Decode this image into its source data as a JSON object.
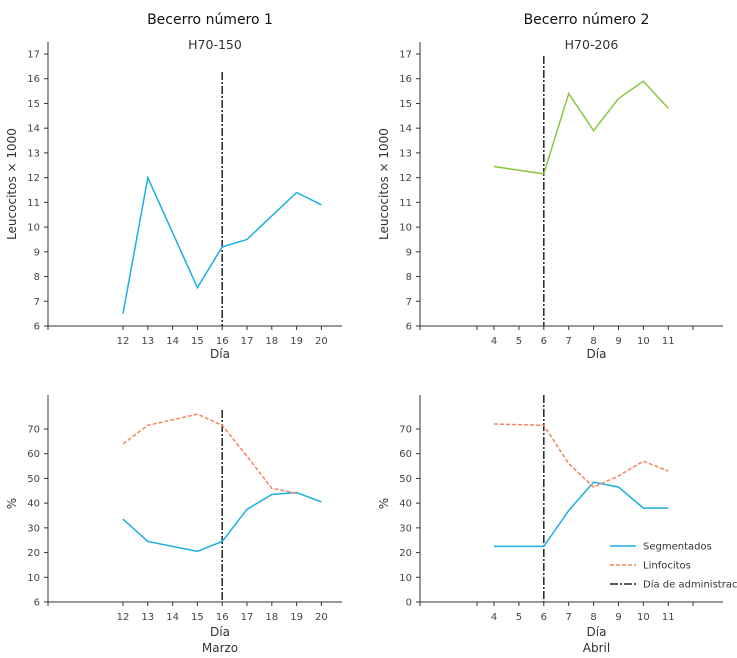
{
  "chart_data": [
    {
      "type": "line",
      "title": "Becerro número 1",
      "subtitle": "H70-150",
      "xlabel": "Día",
      "ylabel": "Leucocitos × 1000",
      "categories": [
        "12",
        "13",
        "14",
        "15",
        "16",
        "17",
        "18",
        "19",
        "20"
      ],
      "ylim": [
        6,
        17
      ],
      "yticks": [
        "6",
        "7",
        "8",
        "9",
        "10",
        "11",
        "12",
        "13",
        "14",
        "15",
        "16",
        "17"
      ],
      "administration_day": 16,
      "series": [
        {
          "color": "#1ab0e0",
          "style": "solid",
          "x": [
            12,
            13,
            15,
            16,
            17,
            18,
            19,
            20
          ],
          "values": [
            6.5,
            12.0,
            7.55,
            9.2,
            9.5,
            10.45,
            11.4,
            10.9
          ]
        }
      ]
    },
    {
      "type": "line",
      "title": "Becerro número 2",
      "subtitle": "H70-206",
      "xlabel": "Día",
      "ylabel": "Leucocitos × 1000",
      "categories": [
        "4",
        "5",
        "6",
        "7",
        "8",
        "9",
        "10",
        "11"
      ],
      "ylim": [
        6,
        17
      ],
      "yticks": [
        "6",
        "7",
        "8",
        "9",
        "10",
        "11",
        "12",
        "13",
        "14",
        "15",
        "16",
        "17"
      ],
      "administration_day": 6,
      "series": [
        {
          "color": "#8cc63f",
          "style": "solid",
          "x": [
            4,
            6,
            7,
            8,
            9,
            10,
            11
          ],
          "values": [
            12.45,
            12.15,
            15.4,
            13.9,
            15.2,
            15.9,
            14.8
          ]
        }
      ]
    },
    {
      "type": "line",
      "xlabel": "Día",
      "month": "Marzo",
      "ylabel": "%",
      "categories": [
        "12",
        "13",
        "14",
        "15",
        "16",
        "17",
        "18",
        "19",
        "20"
      ],
      "ylim": [
        0,
        80
      ],
      "yticks": [
        "6",
        "10",
        "20",
        "30",
        "40",
        "50",
        "60",
        "70"
      ],
      "administration_day": 16,
      "series": [
        {
          "name": "Segmentados",
          "color": "#1ab0e0",
          "style": "solid",
          "x": [
            12,
            13,
            15,
            16,
            17,
            18,
            19,
            20
          ],
          "values": [
            33.5,
            24.5,
            20.5,
            24.5,
            37.5,
            43.5,
            44.3,
            40.5
          ]
        },
        {
          "name": "Linfocitos",
          "color": "#f4845f",
          "style": "dashed",
          "x": [
            12,
            13,
            15,
            16,
            17,
            18,
            19
          ],
          "values": [
            64,
            71.5,
            76,
            71.5,
            59,
            46,
            44
          ]
        }
      ]
    },
    {
      "type": "line",
      "xlabel": "Día",
      "month": "Abril",
      "ylabel": "%",
      "categories": [
        "4",
        "5",
        "6",
        "7",
        "8",
        "9",
        "10",
        "11"
      ],
      "ylim": [
        0,
        80
      ],
      "yticks": [
        "0",
        "10",
        "20",
        "30",
        "40",
        "50",
        "60",
        "70"
      ],
      "administration_day": 6,
      "series": [
        {
          "name": "Segmentados",
          "color": "#1ab0e0",
          "style": "solid",
          "x": [
            4,
            6,
            7,
            8,
            9,
            10,
            11
          ],
          "values": [
            22.5,
            22.5,
            37,
            48.5,
            46.5,
            38,
            38
          ]
        },
        {
          "name": "Linfocitos",
          "color": "#f4845f",
          "style": "dashed",
          "x": [
            4,
            6,
            7,
            8,
            9,
            10,
            11
          ],
          "values": [
            72,
            71.5,
            56,
            46.5,
            51,
            57,
            53
          ]
        }
      ],
      "legend": {
        "placement": "bottom-right",
        "items": [
          "Segmentados",
          "Linfocitos",
          "Día de administración"
        ]
      }
    }
  ]
}
